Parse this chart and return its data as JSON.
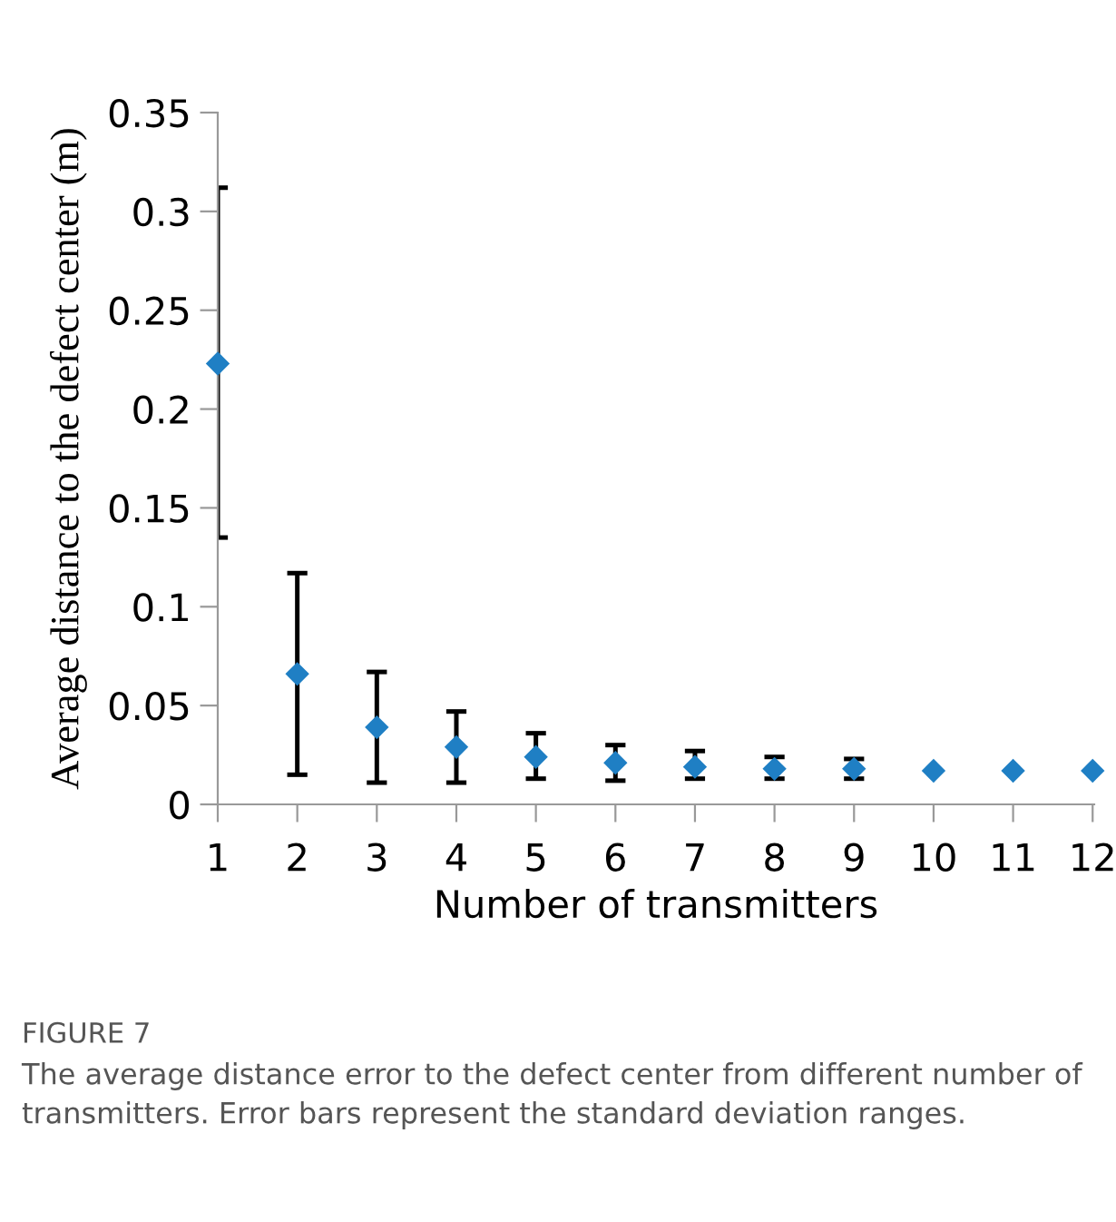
{
  "chart_data": {
    "type": "scatter",
    "xlabel": "Number of transmitters",
    "ylabel": "Average distance to the defect center (m)",
    "categories": [
      "1",
      "2",
      "3",
      "4",
      "5",
      "6",
      "7",
      "8",
      "9",
      "10",
      "11",
      "12"
    ],
    "values": [
      0.223,
      0.066,
      0.039,
      0.029,
      0.024,
      0.021,
      0.019,
      0.018,
      0.018,
      0.017,
      0.017,
      0.017
    ],
    "errors": [
      [
        0.135,
        0.312
      ],
      [
        0.015,
        0.117
      ],
      [
        0.011,
        0.067
      ],
      [
        0.011,
        0.047
      ],
      [
        0.013,
        0.036
      ],
      [
        0.012,
        0.03
      ],
      [
        0.013,
        0.027
      ],
      [
        0.013,
        0.024
      ],
      [
        0.013,
        0.023
      ],
      null,
      null,
      null
    ],
    "color": "#1f7fc4",
    "marker": "diamond",
    "grid": false,
    "legend": false,
    "ylim": [
      0,
      0.35
    ],
    "yticks": [
      0,
      0.05,
      0.1,
      0.15,
      0.2,
      0.25,
      0.3,
      0.35
    ],
    "annotations": [
      "FIGURE 7",
      "The average distance error to the defect center from different number of transmitters. Error bars represent the standard deviation ranges."
    ]
  }
}
